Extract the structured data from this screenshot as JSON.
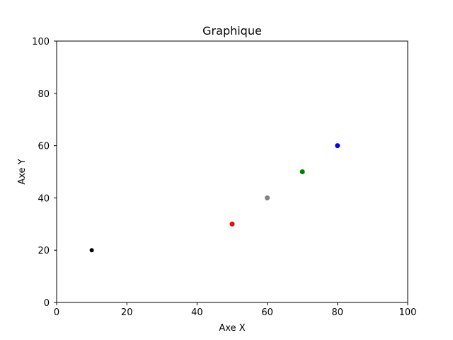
{
  "chart_data": {
    "type": "scatter",
    "title": "Graphique",
    "xlabel": "Axe X",
    "ylabel": "Axe Y",
    "xlim": [
      0,
      100
    ],
    "ylim": [
      0,
      100
    ],
    "xticks": [
      0,
      20,
      40,
      60,
      80,
      100
    ],
    "yticks": [
      0,
      20,
      40,
      60,
      80,
      100
    ],
    "grid": false,
    "points": [
      {
        "x": 10,
        "y": 20,
        "color": "#000000",
        "size": "small"
      },
      {
        "x": 50,
        "y": 30,
        "color": "#ff0000",
        "size": "normal"
      },
      {
        "x": 60,
        "y": 40,
        "color": "#808080",
        "size": "normal"
      },
      {
        "x": 70,
        "y": 50,
        "color": "#008000",
        "size": "normal"
      },
      {
        "x": 80,
        "y": 60,
        "color": "#0000ff",
        "size": "normal"
      }
    ]
  }
}
